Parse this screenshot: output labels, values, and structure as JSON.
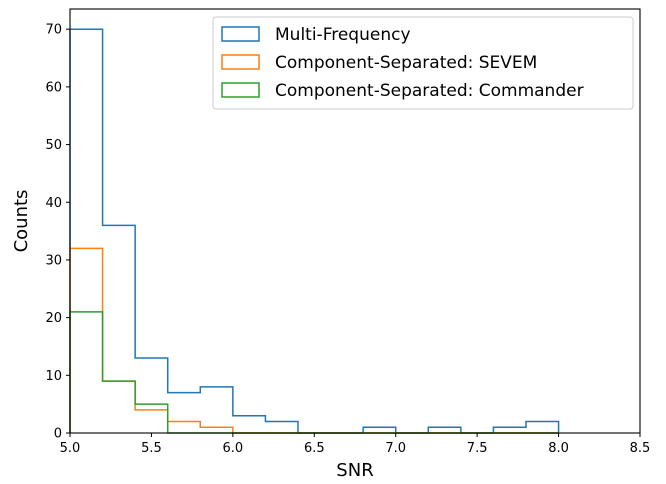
{
  "chart_data": {
    "type": "histogram-step",
    "xlabel": "SNR",
    "ylabel": "Counts",
    "xlim": [
      5.0,
      8.5
    ],
    "ylim": [
      0,
      73.5
    ],
    "x_ticks": [
      "5.0",
      "5.5",
      "6.0",
      "6.5",
      "7.0",
      "7.5",
      "8.0",
      "8.5"
    ],
    "y_ticks": [
      "0",
      "10",
      "20",
      "30",
      "40",
      "50",
      "60",
      "70"
    ],
    "x_tick_values": [
      5.0,
      5.5,
      6.0,
      6.5,
      7.0,
      7.5,
      8.0,
      8.5
    ],
    "y_tick_values": [
      0,
      10,
      20,
      30,
      40,
      50,
      60,
      70
    ],
    "bin_edges": [
      5.0,
      5.2,
      5.4,
      5.6,
      5.8,
      6.0,
      6.2,
      6.4,
      6.6,
      6.8,
      7.0,
      7.2,
      7.4,
      7.6,
      7.8,
      8.0
    ],
    "legend_position": "top-right",
    "grid": false,
    "series": [
      {
        "name": "Multi-Frequency",
        "color": "#1f77b4",
        "counts": [
          70,
          36,
          13,
          7,
          8,
          3,
          2,
          0,
          0,
          1,
          0,
          1,
          0,
          1,
          2
        ]
      },
      {
        "name": "Component-Separated: SEVEM",
        "color": "#ff7f0e",
        "counts": [
          32,
          9,
          4,
          2,
          1,
          0,
          0,
          0,
          0,
          0,
          0,
          0,
          0,
          0,
          0
        ]
      },
      {
        "name": "Component-Separated: Commander",
        "color": "#2ca02c",
        "counts": [
          21,
          9,
          5,
          0,
          0,
          0,
          0,
          0,
          0,
          0,
          0,
          0,
          0,
          0,
          0
        ]
      }
    ]
  }
}
